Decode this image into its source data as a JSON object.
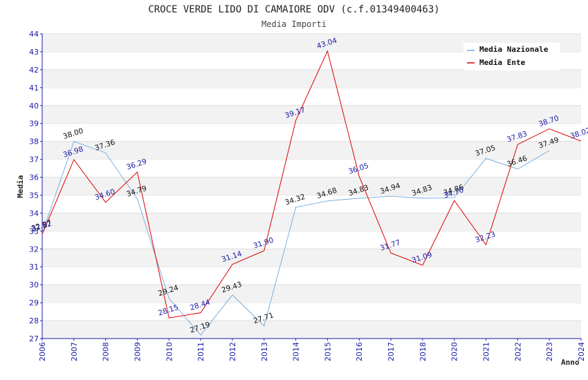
{
  "chart_data": {
    "type": "line",
    "title": "CROCE VERDE LIDO DI CAMAIORE ODV (c.f.01349400463)",
    "subtitle": "Media Importi",
    "xlabel": "Anno",
    "ylabel": "Media",
    "ylim": [
      27,
      44
    ],
    "yticks": [
      "27",
      "28",
      "29",
      "30",
      "31",
      "32",
      "33",
      "34",
      "35",
      "36",
      "37",
      "38",
      "39",
      "40",
      "41",
      "42",
      "43",
      "44"
    ],
    "categories": [
      "2006",
      "2007",
      "2008",
      "2009",
      "2010",
      "2011",
      "2012",
      "2013",
      "2014",
      "2015",
      "2016",
      "2017",
      "2018",
      "2020",
      "2021",
      "2022",
      "2023",
      "2024"
    ],
    "grid": "horizontal bands",
    "legend_position": "top-right",
    "series": [
      {
        "name": "Media Nazionale",
        "color": "#6fa8dc",
        "label_color": "#111111",
        "values": [
          32.87,
          38.0,
          37.36,
          34.79,
          29.24,
          27.19,
          29.43,
          27.71,
          34.32,
          34.68,
          34.83,
          34.94,
          34.83,
          34.86,
          37.05,
          36.46,
          37.49,
          null
        ],
        "labels": [
          "32.87",
          "38.00",
          "37.36",
          "34.79",
          "29.24",
          "27.19",
          "29.43",
          "27.71",
          "34.32",
          "34.68",
          "34.83",
          "34.94",
          "34.83",
          "34.86",
          "37.05",
          "36.46",
          "37.49",
          ""
        ]
      },
      {
        "name": "Media Ente",
        "color": "#dd0000",
        "label_color": "#1a1aa6",
        "values": [
          32.82,
          36.98,
          34.6,
          36.29,
          28.15,
          28.44,
          31.14,
          31.9,
          39.17,
          43.04,
          36.05,
          31.77,
          31.09,
          34.7,
          32.23,
          37.83,
          38.7,
          38.02
        ],
        "labels": [
          "32.82",
          "36.98",
          "34.60",
          "36.29",
          "28.15",
          "28.44",
          "31.14",
          "31.90",
          "39.17",
          "43.04",
          "36.05",
          "31.77",
          "31.09",
          "34.70",
          "32.23",
          "37.83",
          "38.70",
          "38.02"
        ]
      }
    ]
  }
}
